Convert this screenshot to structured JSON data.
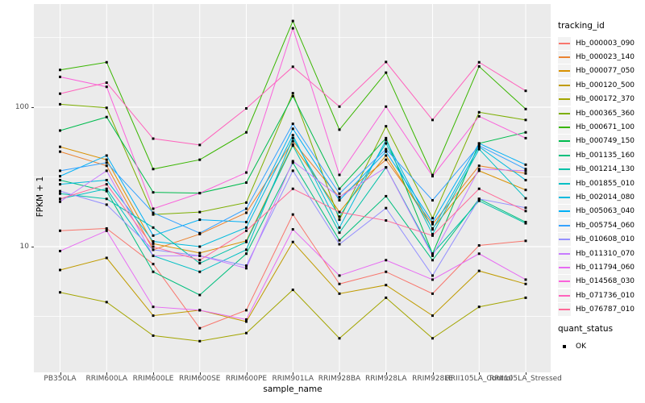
{
  "chart_data": {
    "type": "line",
    "xlabel": "sample_name",
    "ylabel": "FPKM + 1",
    "y_scale": "log10",
    "y_ticks": [
      100,
      10
    ],
    "ylim": [
      1.25,
      550
    ],
    "grid": true,
    "legend_position": "right",
    "panel_bg": "#EBEBEB",
    "grid_color": "#FFFFFF",
    "point_color": "#000000",
    "axis_text_color": "#4D4D4D",
    "categories": [
      "PB350LA",
      "RRIM600LA",
      "RRIM600LE",
      "RRIM600SE",
      "RRIM600PE",
      "RRIM901LA",
      "RRIM928BA",
      "RRIM928LA",
      "RRIM928LE",
      "RRII105LA_Control",
      "RRII105LA_Stressed"
    ],
    "legend": {
      "title": "tracking_id"
    },
    "quant_status": {
      "title": "quant_status",
      "items": [
        "OK"
      ]
    },
    "series": [
      {
        "name": "Hb_000003_090",
        "color": "#F8766D",
        "values": [
          13,
          13.5,
          7.5,
          2.6,
          3.5,
          17,
          5.4,
          6.6,
          4.6,
          10.2,
          11
        ]
      },
      {
        "name": "Hb_000023_140",
        "color": "#EA8331",
        "values": [
          48,
          38,
          9.5,
          12.3,
          17.5,
          57,
          22.5,
          42,
          14.5,
          38,
          33.5
        ]
      },
      {
        "name": "Hb_000077_050",
        "color": "#D89000",
        "values": [
          52,
          42,
          10.5,
          9,
          11,
          54,
          17.7,
          45,
          13.5,
          35,
          25.5
        ]
      },
      {
        "name": "Hb_000120_500",
        "color": "#C09B00",
        "values": [
          6.8,
          8.3,
          3.2,
          3.5,
          2.9,
          10.8,
          4.6,
          5.3,
          3.2,
          6.7,
          5.4
        ]
      },
      {
        "name": "Hb_000172_370",
        "color": "#A3A500",
        "values": [
          4.7,
          4.0,
          2.3,
          2.1,
          2.4,
          4.9,
          2.2,
          4.3,
          2.2,
          3.7,
          4.3
        ]
      },
      {
        "name": "Hb_000365_360",
        "color": "#7CAE00",
        "values": [
          105,
          99,
          17,
          17.7,
          20.7,
          126,
          15.6,
          73,
          16,
          92,
          81
        ]
      },
      {
        "name": "Hb_000671_100",
        "color": "#39B600",
        "values": [
          185,
          210,
          36,
          42,
          66,
          415,
          69,
          177,
          32.6,
          196,
          97
        ]
      },
      {
        "name": "Hb_000749_150",
        "color": "#00BB4E",
        "values": [
          68,
          85,
          24.5,
          24.2,
          28.8,
          120,
          26,
          60,
          8.9,
          55,
          66
        ]
      },
      {
        "name": "Hb_001135_160",
        "color": "#00BF7D",
        "values": [
          30,
          25,
          6.6,
          4.5,
          8.9,
          40,
          11.1,
          23,
          8,
          22,
          15
        ]
      },
      {
        "name": "Hb_001214_130",
        "color": "#00C1A7",
        "values": [
          24,
          22,
          13.7,
          7.6,
          10.8,
          53,
          12.6,
          37,
          8.9,
          21.3,
          14.7
        ]
      },
      {
        "name": "Hb_001855_010",
        "color": "#00BFC4",
        "values": [
          22,
          26,
          8.6,
          6.6,
          9.5,
          60,
          16.4,
          55,
          12.3,
          50,
          22.2
        ]
      },
      {
        "name": "Hb_002014_080",
        "color": "#00BADE",
        "values": [
          28,
          30,
          10.9,
          10,
          13.7,
          63,
          13.7,
          58,
          13.3,
          52,
          30
        ]
      },
      {
        "name": "Hb_005063_040",
        "color": "#00B0F6",
        "values": [
          32,
          45,
          12,
          15.6,
          15,
          70,
          21.5,
          48,
          15,
          55,
          38.7
        ]
      },
      {
        "name": "Hb_005754_060",
        "color": "#35A2FF",
        "values": [
          35,
          40,
          17.5,
          12.5,
          18.7,
          76,
          24,
          50,
          21.5,
          53,
          36
        ]
      },
      {
        "name": "Hb_010608_010",
        "color": "#9590FF",
        "values": [
          25,
          20,
          9.5,
          8.6,
          7.3,
          35,
          10.4,
          18.9,
          6.2,
          22,
          19
        ]
      },
      {
        "name": "Hb_011310_070",
        "color": "#C77CFF",
        "values": [
          21,
          35,
          8.6,
          8.6,
          7.0,
          41,
          22.7,
          37,
          8.6,
          36,
          35
        ]
      },
      {
        "name": "Hb_011794_060",
        "color": "#E76BF3",
        "values": [
          9.3,
          13,
          3.7,
          3.5,
          3.0,
          13.3,
          6.2,
          8.0,
          5.8,
          8.9,
          5.8
        ]
      },
      {
        "name": "Hb_014568_030",
        "color": "#FA62DB",
        "values": [
          165,
          140,
          18.7,
          24.2,
          34,
          368,
          32.7,
          101,
          32,
          86,
          60
        ]
      },
      {
        "name": "Hb_071736_010",
        "color": "#FF62BC",
        "values": [
          125,
          150,
          59.5,
          53.6,
          98,
          195,
          101,
          211,
          81,
          210,
          131
        ]
      },
      {
        "name": "Hb_076787_010",
        "color": "#FF6A98",
        "values": [
          22,
          28,
          10,
          8,
          13,
          26,
          17.7,
          15.4,
          12,
          26,
          18
        ]
      }
    ]
  }
}
